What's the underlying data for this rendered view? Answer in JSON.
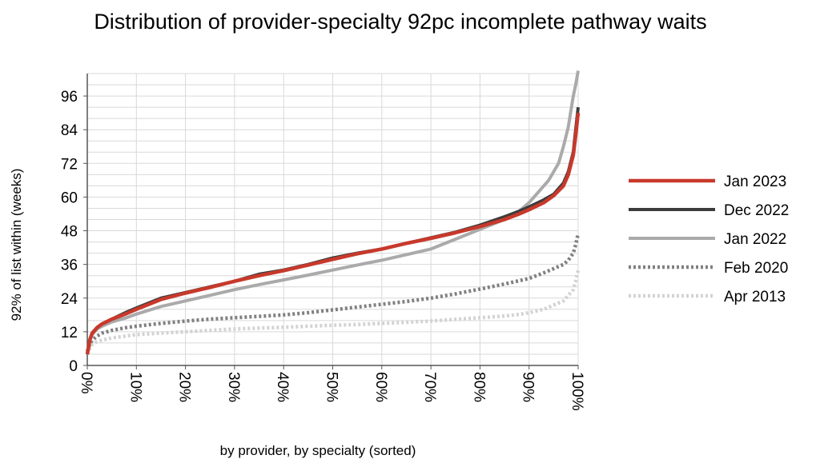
{
  "chart_data": {
    "type": "line",
    "title": "Distribution of provider-specialty 92pc incomplete pathway waits",
    "xlabel": "by provider, by specialty (sorted)",
    "ylabel": "92% of list within (weeks)",
    "xlim": [
      0,
      100
    ],
    "ylim": [
      0,
      104
    ],
    "x_ticks": [
      "0%",
      "10%",
      "20%",
      "30%",
      "40%",
      "50%",
      "60%",
      "70%",
      "80%",
      "90%",
      "100%"
    ],
    "y_ticks": [
      "0",
      "12",
      "24",
      "36",
      "48",
      "60",
      "72",
      "84",
      "96"
    ],
    "grid": true,
    "legend_position": "right",
    "series": [
      {
        "name": "Apr 2013",
        "color": "#d3d3d3",
        "style": "dotted",
        "x": [
          0,
          0.5,
          1,
          2,
          3,
          5,
          8,
          10,
          15,
          20,
          25,
          30,
          35,
          40,
          45,
          50,
          55,
          60,
          65,
          70,
          75,
          80,
          85,
          88,
          90,
          93,
          95,
          97,
          98,
          99,
          99.5,
          100
        ],
        "y": [
          4,
          6,
          7.5,
          8.5,
          9,
          9.8,
          10.5,
          11,
          11.5,
          12,
          12.5,
          13,
          13.3,
          13.6,
          14,
          14.3,
          14.6,
          15,
          15.4,
          15.8,
          16.4,
          17,
          17.6,
          18.2,
          18.8,
          20,
          21.5,
          23,
          25,
          27,
          30,
          34
        ]
      },
      {
        "name": "Feb 2020",
        "color": "#808080",
        "style": "dotted",
        "x": [
          0,
          0.5,
          1,
          2,
          3,
          5,
          8,
          10,
          15,
          20,
          25,
          30,
          35,
          40,
          45,
          50,
          55,
          60,
          65,
          70,
          75,
          80,
          85,
          90,
          93,
          95,
          97,
          98,
          99,
          99.5,
          100
        ],
        "y": [
          5,
          7.5,
          9,
          10.5,
          11.5,
          12.5,
          13.5,
          14,
          15,
          15.8,
          16.5,
          17,
          17.5,
          18,
          18.8,
          19.8,
          20.8,
          21.8,
          22.8,
          24,
          25.5,
          27.2,
          29,
          31,
          33,
          34.5,
          36,
          37.5,
          40,
          43,
          47
        ]
      },
      {
        "name": "Jan 2022",
        "color": "#aaaaaa",
        "style": "solid",
        "x": [
          0,
          0.5,
          1,
          2,
          3,
          5,
          8,
          10,
          15,
          20,
          25,
          30,
          35,
          40,
          45,
          50,
          55,
          60,
          65,
          70,
          75,
          80,
          85,
          88,
          90,
          92,
          94,
          96,
          97,
          98,
          99,
          99.5,
          100
        ],
        "y": [
          4,
          9,
          11,
          13,
          14,
          15.5,
          17,
          18.3,
          21,
          23,
          25,
          27,
          28.8,
          30.5,
          32.2,
          34,
          35.8,
          37.5,
          39.5,
          41.5,
          45,
          48.5,
          52,
          55,
          58,
          62,
          66,
          72,
          78,
          85,
          96,
          100,
          105
        ]
      },
      {
        "name": "Dec 2022",
        "color": "#3c3c3c",
        "style": "solid",
        "x": [
          0,
          0.5,
          1,
          2,
          3,
          5,
          8,
          10,
          15,
          20,
          25,
          30,
          35,
          40,
          45,
          50,
          55,
          60,
          65,
          70,
          75,
          80,
          85,
          88,
          90,
          93,
          95,
          97,
          98,
          99,
          99.5,
          100
        ],
        "y": [
          4,
          9,
          11.5,
          13.5,
          14.8,
          16.5,
          19,
          20.5,
          24,
          26,
          28,
          30,
          32.5,
          34,
          36,
          38.3,
          40,
          41.5,
          43.5,
          45.5,
          47.5,
          50,
          53,
          55,
          56.5,
          59,
          61,
          65,
          69,
          76,
          84,
          92
        ]
      },
      {
        "name": "Jan 2023",
        "color": "#c8392b",
        "style": "solid",
        "x": [
          0,
          0.5,
          1,
          2,
          3,
          5,
          8,
          10,
          15,
          20,
          25,
          30,
          35,
          40,
          45,
          50,
          55,
          60,
          65,
          70,
          75,
          80,
          85,
          88,
          90,
          93,
          95,
          97,
          98,
          99,
          99.5,
          100
        ],
        "y": [
          4,
          9,
          11.5,
          13.5,
          14.8,
          16.5,
          18.5,
          20,
          23.5,
          25.8,
          27.8,
          30,
          32,
          33.8,
          35.8,
          37.8,
          39.8,
          41.5,
          43.5,
          45.3,
          47.3,
          49.5,
          52,
          54,
          55.5,
          58,
          60.5,
          64,
          68,
          75,
          82,
          90
        ]
      }
    ],
    "legend_order": [
      "Jan 2023",
      "Dec 2022",
      "Jan 2022",
      "Feb 2020",
      "Apr 2013"
    ]
  }
}
